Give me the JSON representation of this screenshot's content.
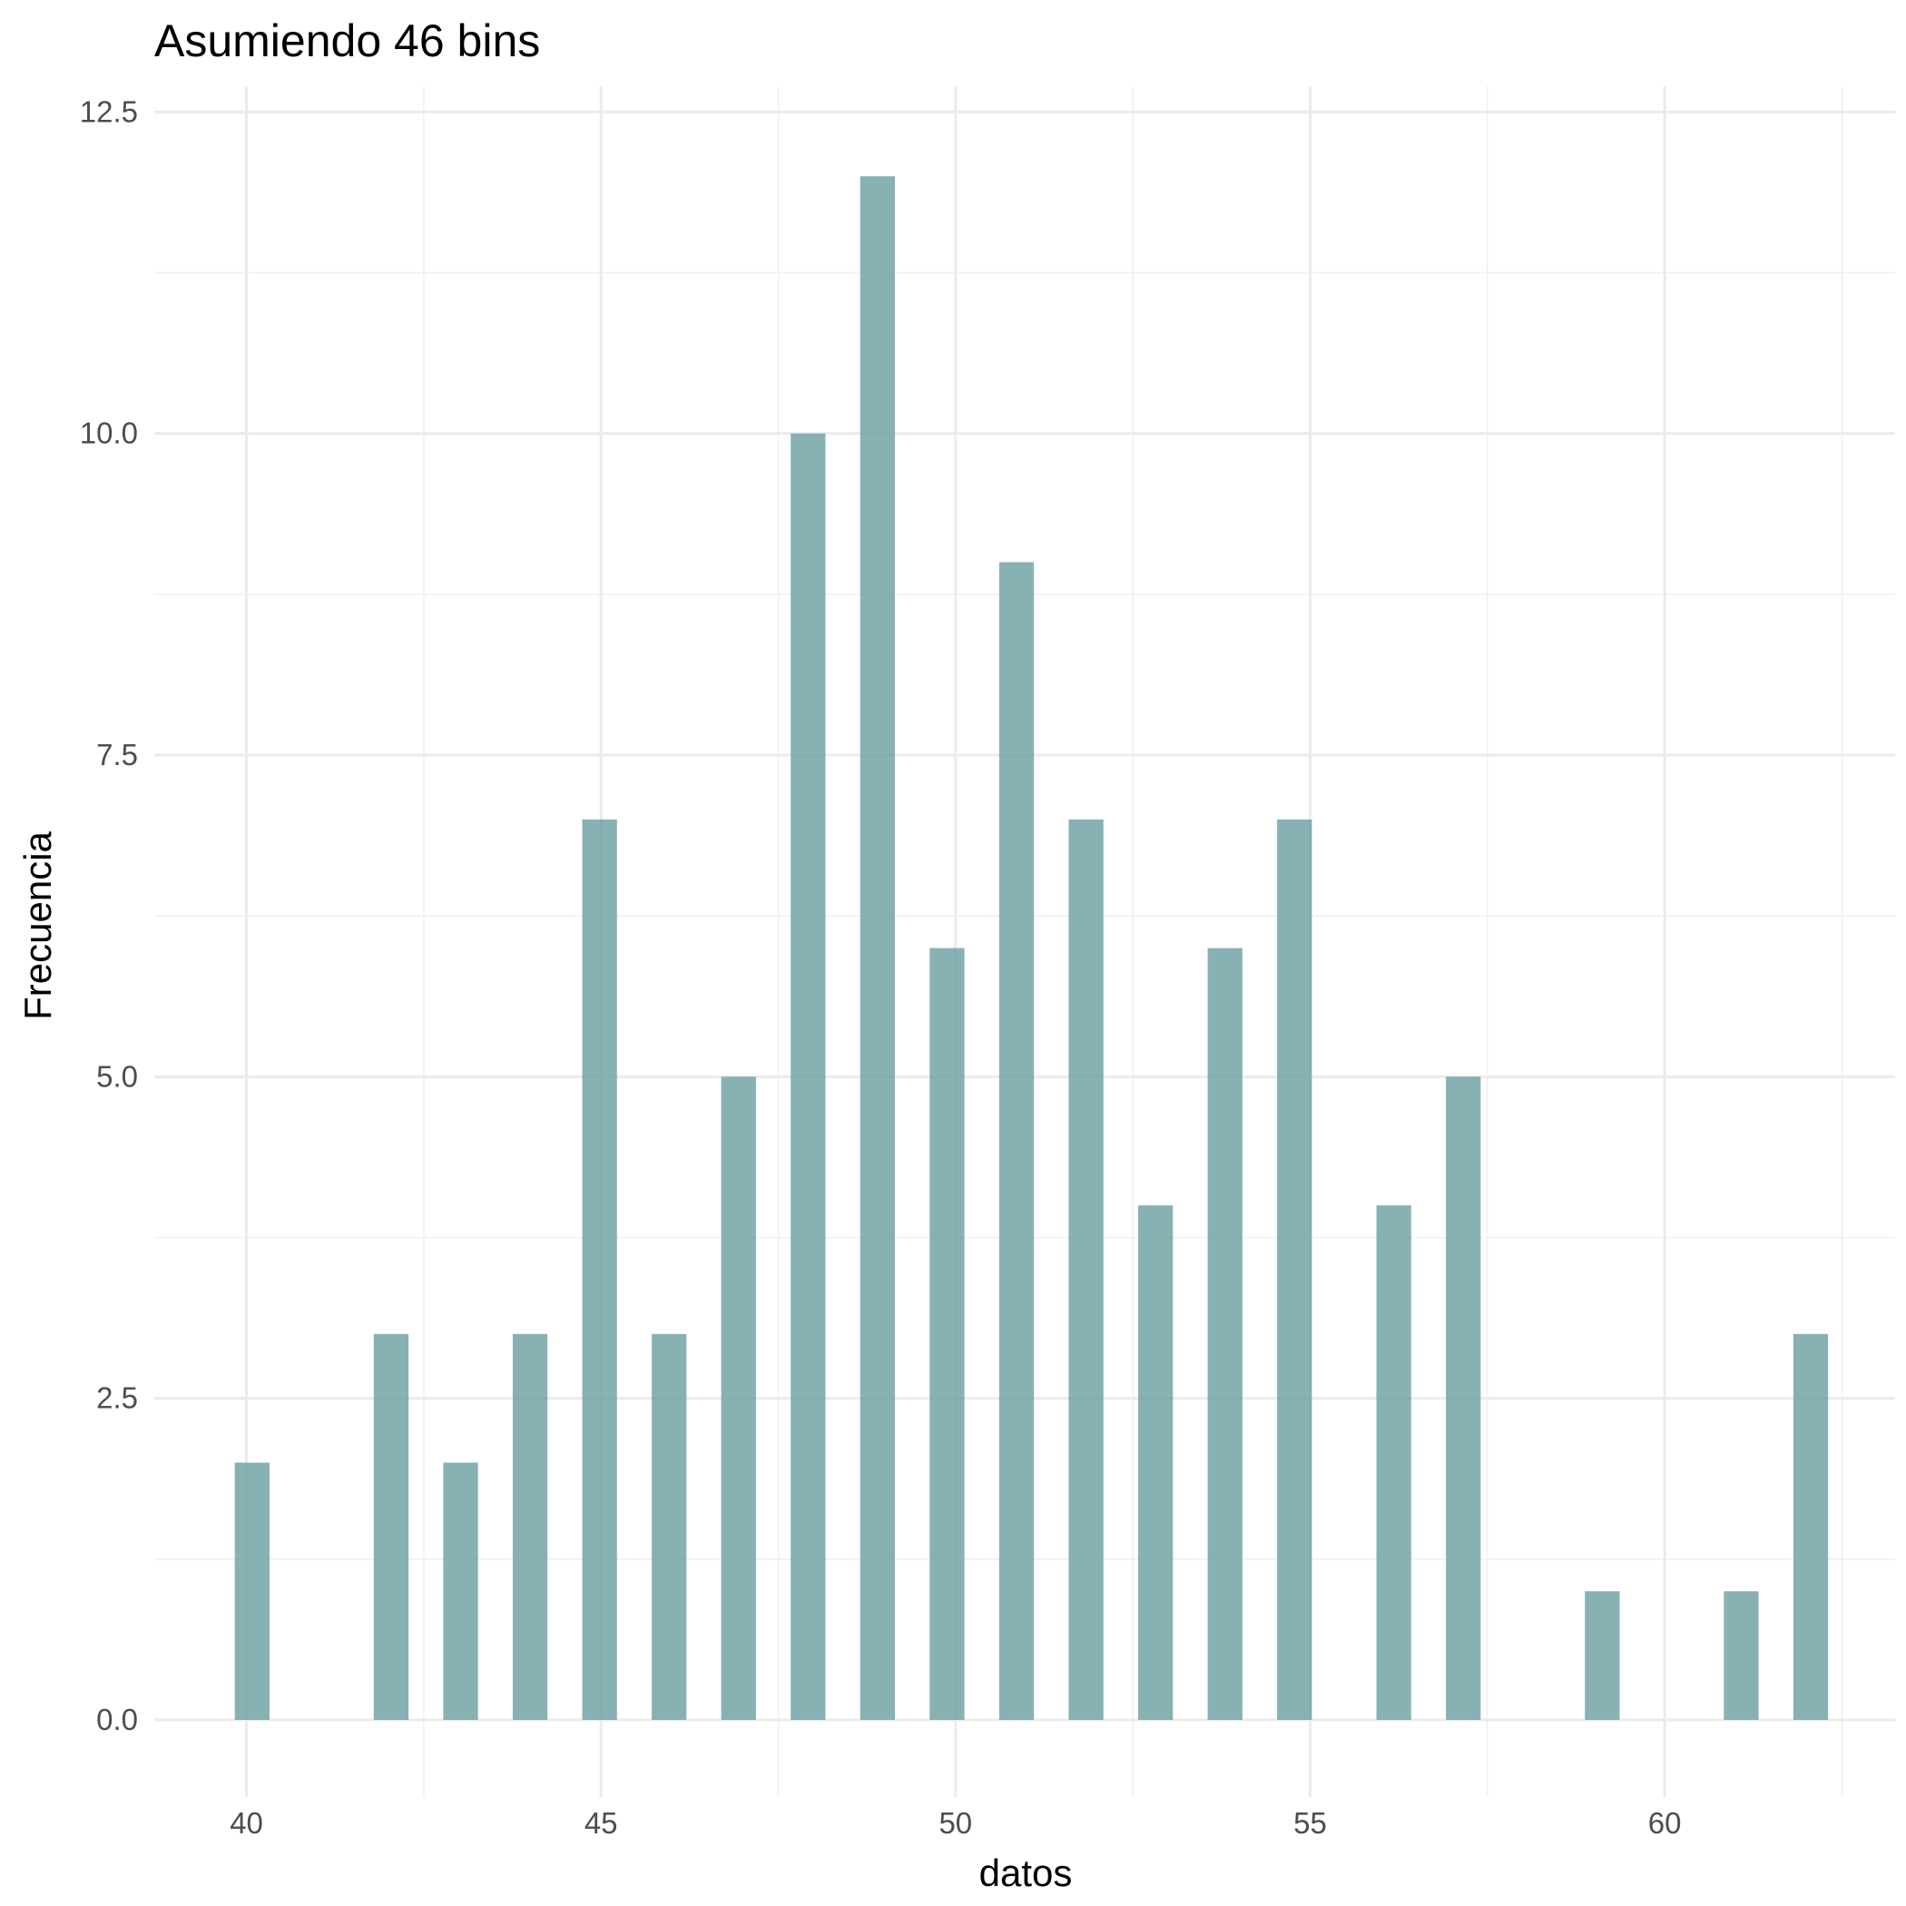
{
  "chart_data": {
    "type": "bar",
    "title": "Asumiendo 46 bins",
    "xlabel": "datos",
    "ylabel": "Frecuencia",
    "x_ticks": [
      40,
      45,
      50,
      55,
      60
    ],
    "y_ticks": [
      "0.0",
      "2.5",
      "5.0",
      "7.5",
      "10.0",
      "12.5"
    ],
    "xlim": [
      38.7,
      63.25
    ],
    "ylim": [
      -0.6,
      12.7
    ],
    "bin_width": 0.49,
    "bins": [
      {
        "x": 40.08,
        "count": 2
      },
      {
        "x": 42.04,
        "count": 3
      },
      {
        "x": 43.02,
        "count": 2
      },
      {
        "x": 44.0,
        "count": 3
      },
      {
        "x": 44.98,
        "count": 7
      },
      {
        "x": 45.96,
        "count": 3
      },
      {
        "x": 46.94,
        "count": 5
      },
      {
        "x": 47.92,
        "count": 10
      },
      {
        "x": 48.9,
        "count": 12
      },
      {
        "x": 49.88,
        "count": 6
      },
      {
        "x": 50.86,
        "count": 9
      },
      {
        "x": 51.84,
        "count": 7
      },
      {
        "x": 52.82,
        "count": 4
      },
      {
        "x": 53.8,
        "count": 6
      },
      {
        "x": 54.78,
        "count": 7
      },
      {
        "x": 56.18,
        "count": 4
      },
      {
        "x": 57.16,
        "count": 5
      },
      {
        "x": 59.12,
        "count": 1
      },
      {
        "x": 61.08,
        "count": 1
      },
      {
        "x": 62.06,
        "count": 3
      }
    ],
    "bar_color": "#6a9ea0",
    "bar_opacity": 0.8,
    "grid": true,
    "legend": "none"
  }
}
